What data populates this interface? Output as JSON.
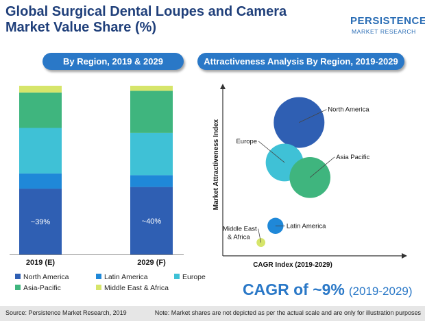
{
  "title_line1": "Global Surgical Dental Loupes and Camera",
  "title_line2": "Market Value Share (%)",
  "logo": {
    "name": "PERSISTENCE",
    "sub": "MARKET RESEARCH"
  },
  "left_chart_heading": "By Region, 2019 & 2029",
  "right_chart_heading": "Attractiveness Analysis By Region, 2019-2029",
  "chart_data": [
    {
      "type": "bar",
      "stacked": true,
      "categories": [
        "2019 (E)",
        "2029 (F)"
      ],
      "series": [
        {
          "name": "North America",
          "values": [
            39,
            40
          ],
          "labels": [
            "~39%",
            "~40%"
          ]
        },
        {
          "name": "Latin America",
          "values": [
            9,
            7
          ]
        },
        {
          "name": "Europe",
          "values": [
            27,
            25
          ]
        },
        {
          "name": "Asia-Pacific",
          "values": [
            21,
            25
          ]
        },
        {
          "name": "Middle East & Africa",
          "values": [
            4,
            3
          ]
        }
      ],
      "ylim": [
        0,
        100
      ],
      "grid": false,
      "legend": "bottom"
    },
    {
      "type": "scatter",
      "bubble": true,
      "xlabel": "CAGR Index (2019-2029)",
      "ylabel": "Market Attractiveness Index",
      "xlim": [
        0,
        100
      ],
      "ylim": [
        0,
        100
      ],
      "grid": false,
      "points": [
        {
          "name": "North America",
          "x": 42,
          "y": 80,
          "size": 100
        },
        {
          "name": "Europe",
          "x": 34,
          "y": 56,
          "size": 55
        },
        {
          "name": "Asia Pacific",
          "x": 48,
          "y": 47,
          "size": 65
        },
        {
          "name": "Latin America",
          "x": 29,
          "y": 18,
          "size": 10
        },
        {
          "name": "Middle East & Africa",
          "x": 21,
          "y": 8,
          "size": 3
        }
      ]
    }
  ],
  "legend": [
    {
      "label": "North America",
      "color": "#2f5fb3"
    },
    {
      "label": "Latin America",
      "color": "#1f88d8"
    },
    {
      "label": "Europe",
      "color": "#3fc1d6"
    },
    {
      "label": "Asia-Pacific",
      "color": "#3fb57e"
    },
    {
      "label": "Middle East & Africa",
      "color": "#d6e56a"
    }
  ],
  "cagr": {
    "main": "CAGR of ~9%",
    "period": "(2019-2029)"
  },
  "footer": {
    "source": "Source: Persistence Market Research, 2019",
    "note": "Note: Market shares are not depicted as per the actual scale and are only for illustration purposes"
  }
}
